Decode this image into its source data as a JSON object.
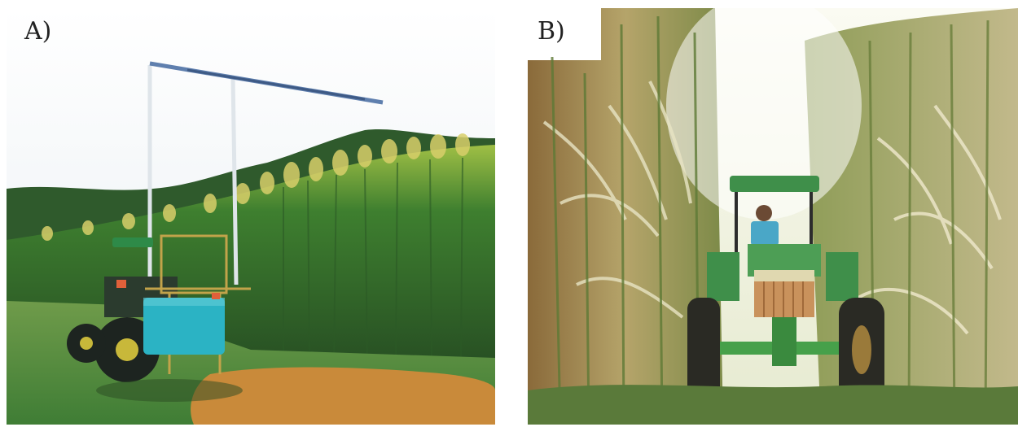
{
  "panels": [
    {
      "label": "A)",
      "scene": "tractor-sprayer-beside-sorghum-field"
    },
    {
      "label": "B)",
      "scene": "tractor-driving-through-tall-sorghum"
    }
  ],
  "colors": {
    "sky": "#f4f6f8",
    "sorghum_green": "#4d8a2e",
    "sorghum_dry": "#c9b98a",
    "tractor_green": "#3f8f4a",
    "tank_cyan": "#2bb3c4",
    "soil": "#c98a3a"
  }
}
